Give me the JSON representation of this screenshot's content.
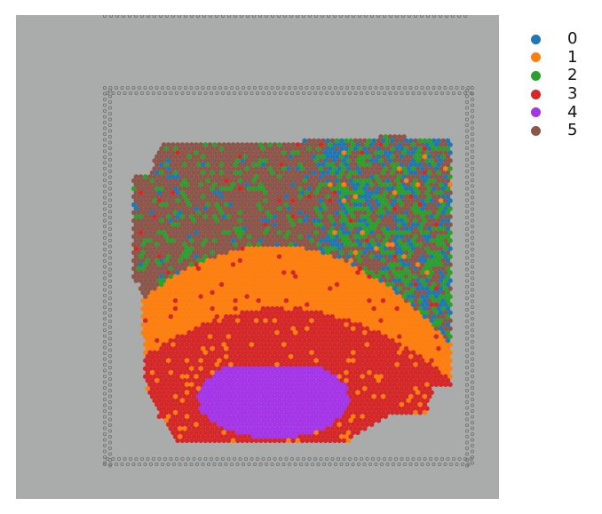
{
  "clusters": [
    {
      "label": "0",
      "color": "#1f77b4"
    },
    {
      "label": "1",
      "color": "#ff7f0e"
    },
    {
      "label": "2",
      "color": "#2ca02c"
    },
    {
      "label": "3",
      "color": "#d62728"
    },
    {
      "label": "4",
      "color": "#a535e8"
    },
    {
      "label": "5",
      "color": "#8c564b"
    }
  ],
  "background_color": "#a9acab"
}
